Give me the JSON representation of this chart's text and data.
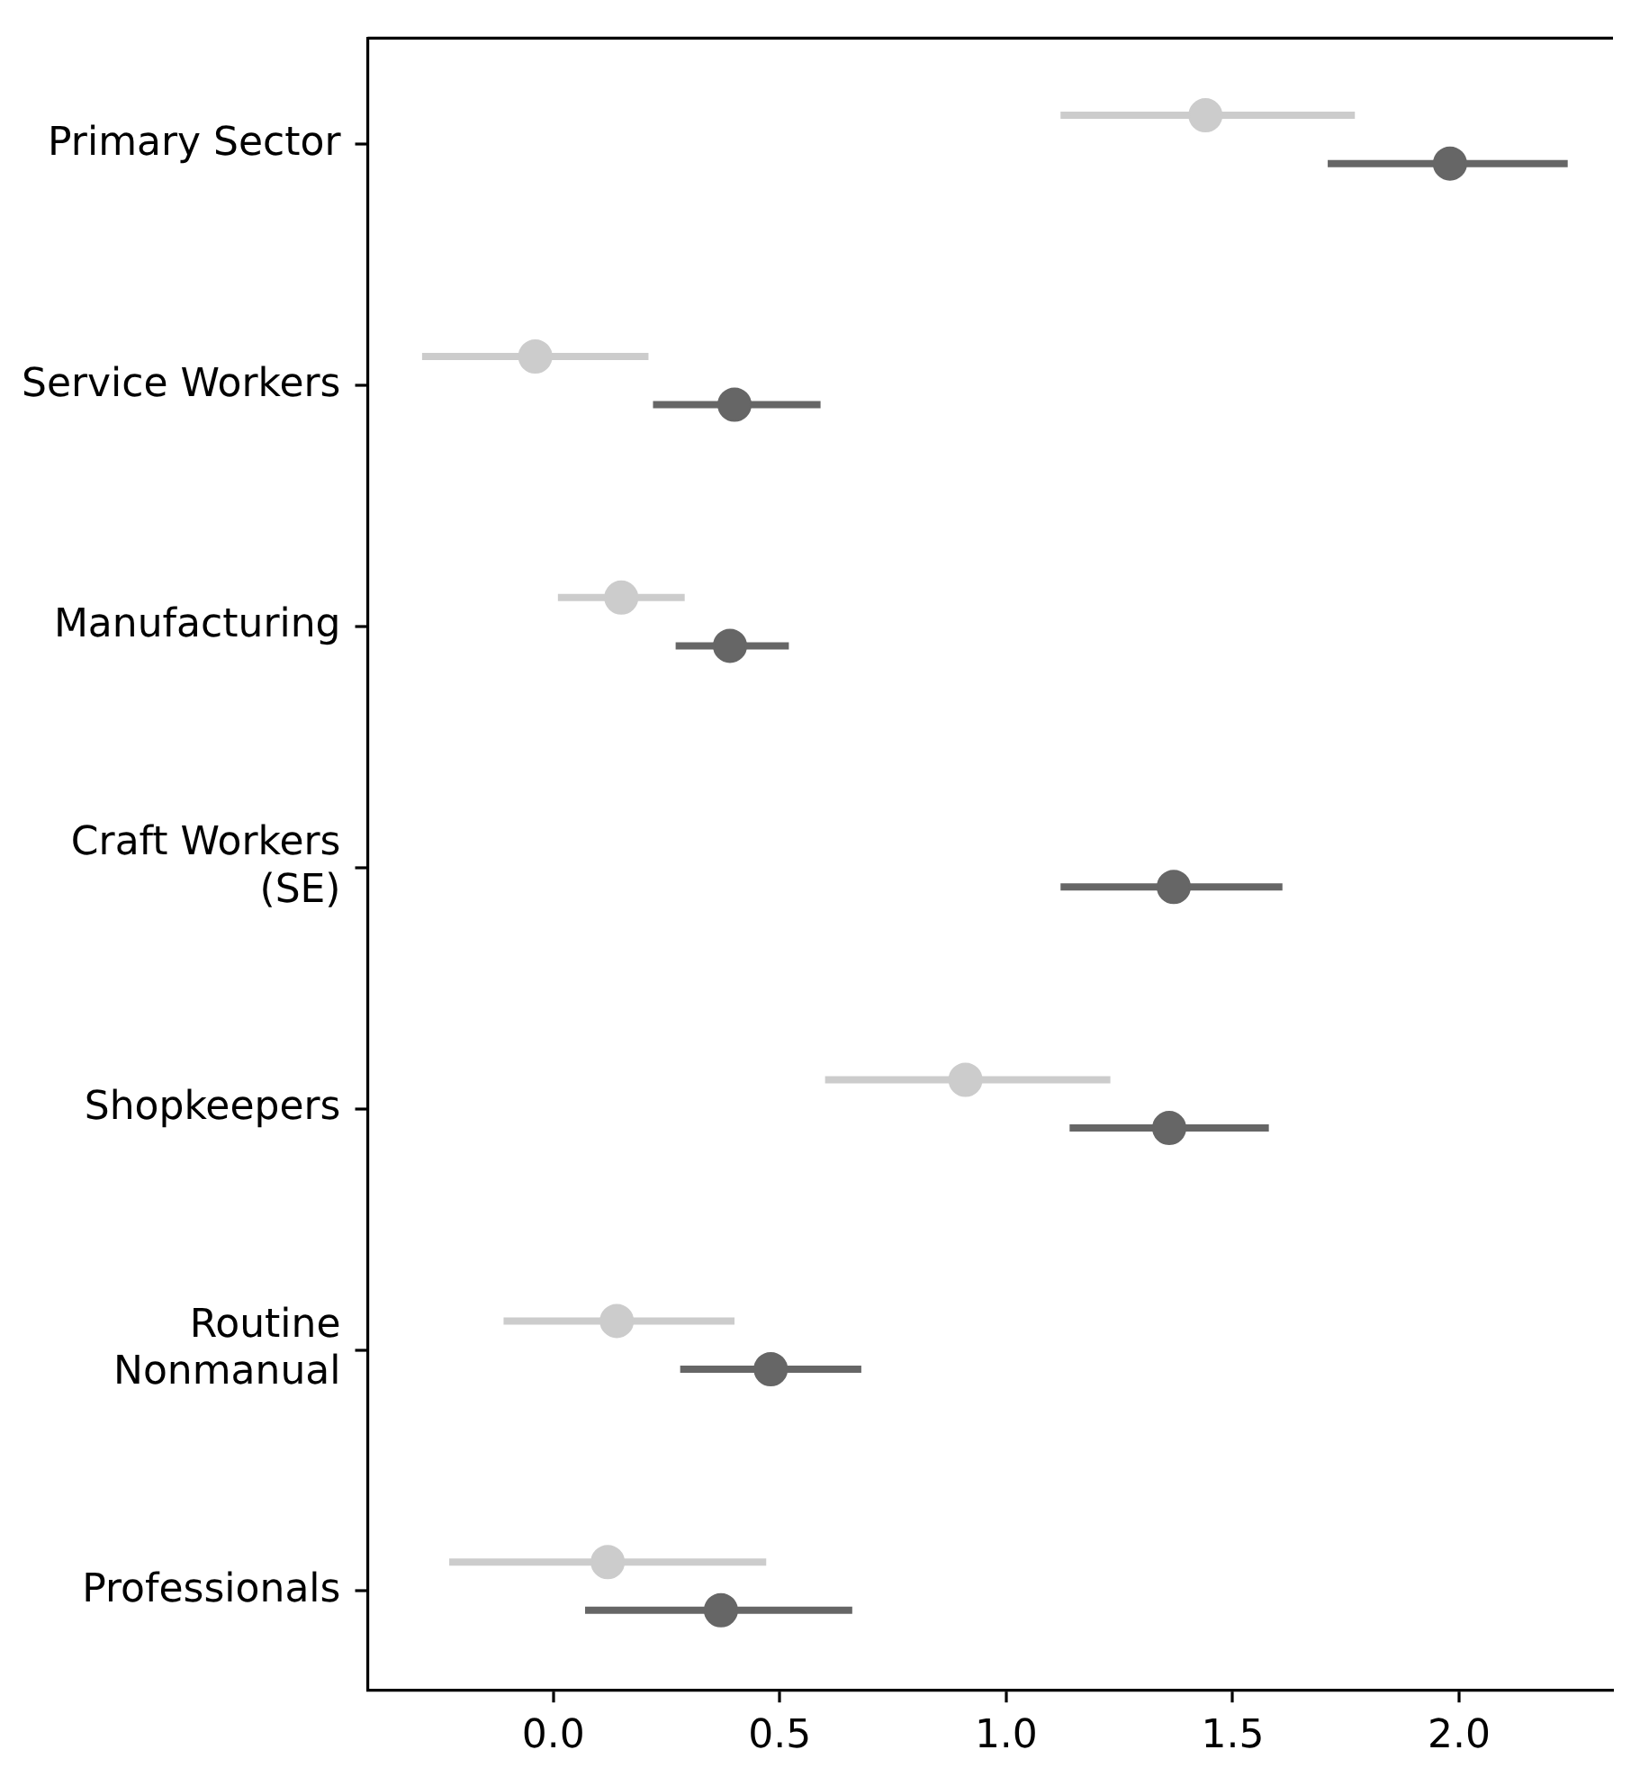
{
  "chart_data": {
    "type": "scatter",
    "orientation": "horizontal",
    "marker": "circle",
    "grid": false,
    "legend": false,
    "categories": [
      "Primary Sector",
      "Service Workers",
      "Manufacturing",
      "Craft Workers\n(SE)",
      "Shopkeepers",
      "Routine\nNonmanual",
      "Professionals"
    ],
    "xlim": [
      -0.41,
      2.34
    ],
    "xticks": [
      {
        "value": 0,
        "label": "0.0"
      },
      {
        "value": 0.5,
        "label": "0.5"
      },
      {
        "value": 1,
        "label": "1.0"
      },
      {
        "value": 1.5,
        "label": "1.5"
      },
      {
        "value": 2,
        "label": "2.0"
      }
    ],
    "series": [
      {
        "color": "#cccccc",
        "values": [
          1.44,
          -0.04,
          0.15,
          null,
          0.91,
          0.14,
          0.12
        ],
        "errors": [
          [
            1.12,
            1.77
          ],
          [
            -0.29,
            0.21
          ],
          [
            0.01,
            0.29
          ],
          null,
          [
            0.6,
            1.23
          ],
          [
            -0.11,
            0.4
          ],
          [
            -0.23,
            0.47
          ]
        ]
      },
      {
        "color": "#666666",
        "values": [
          1.98,
          0.4,
          0.39,
          1.37,
          1.36,
          0.48,
          0.37
        ],
        "errors": [
          [
            1.71,
            2.24
          ],
          [
            0.22,
            0.59
          ],
          [
            0.27,
            0.52
          ],
          [
            1.12,
            1.61
          ],
          [
            1.14,
            1.58
          ],
          [
            0.28,
            0.68
          ],
          [
            0.07,
            0.66
          ]
        ]
      }
    ]
  }
}
